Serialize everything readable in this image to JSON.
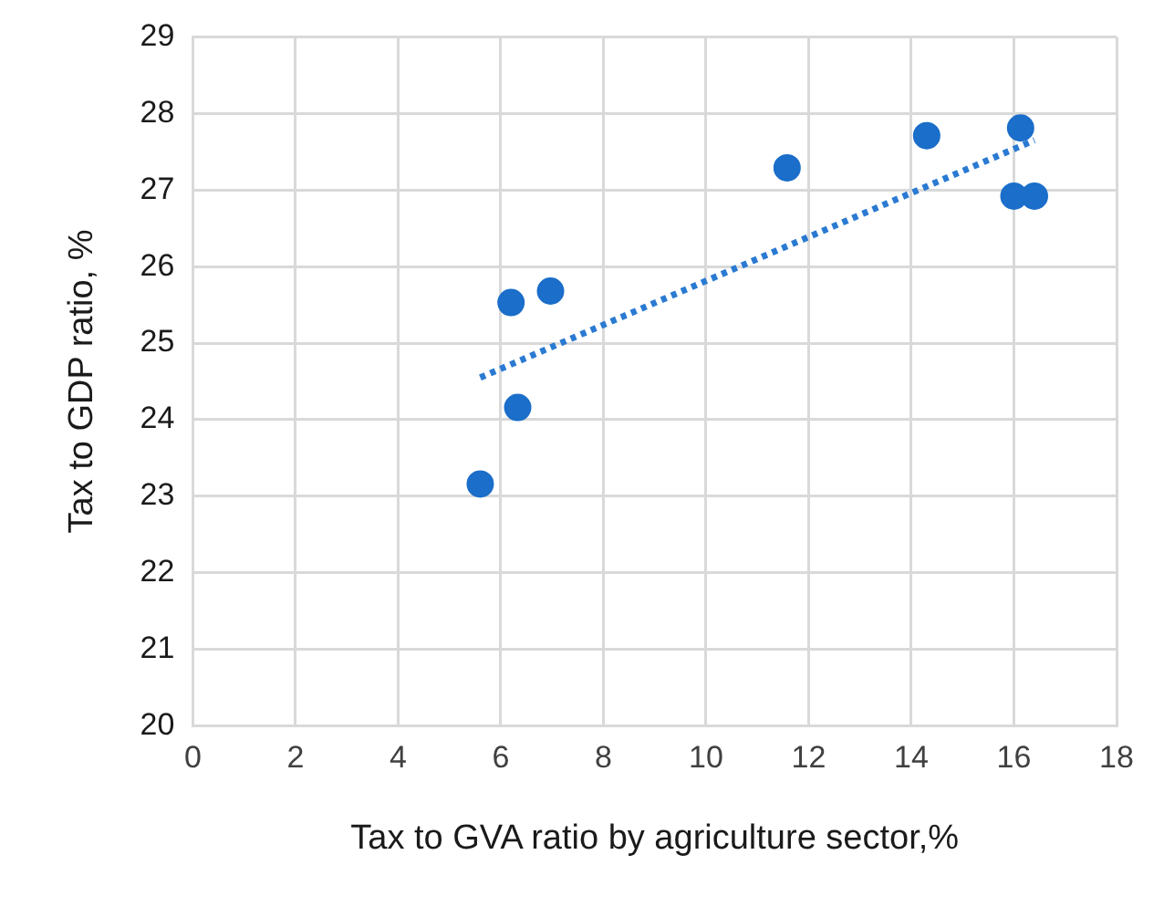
{
  "chart_data": {
    "type": "scatter",
    "xlabel": "Tax to GVA ratio by agriculture sector,%",
    "ylabel": "Tax to GDP ratio, %",
    "xlim": [
      0,
      18
    ],
    "xticks": [
      0,
      2,
      4,
      6,
      8,
      10,
      12,
      14,
      16,
      18
    ],
    "ylim": [
      20,
      29
    ],
    "yticks": [
      20,
      21,
      22,
      23,
      24,
      25,
      26,
      27,
      28,
      29
    ],
    "grid": true,
    "legend": false,
    "marker": "circle",
    "series": [
      {
        "color": "#1b6ec9",
        "x": [
          5.6,
          6.2,
          6.97,
          6.33,
          11.58,
          14.3,
          16.13,
          16.0,
          16.4
        ],
        "values": [
          23.16,
          25.53,
          25.68,
          24.16,
          27.29,
          27.71,
          27.81,
          26.92,
          26.92
        ]
      },
      {
        "type": "line",
        "line_style": "dotted",
        "marker": "none",
        "color": "#2a7ad2",
        "x": [
          5.6,
          16.4
        ],
        "values": [
          24.55,
          27.65
        ]
      }
    ]
  }
}
